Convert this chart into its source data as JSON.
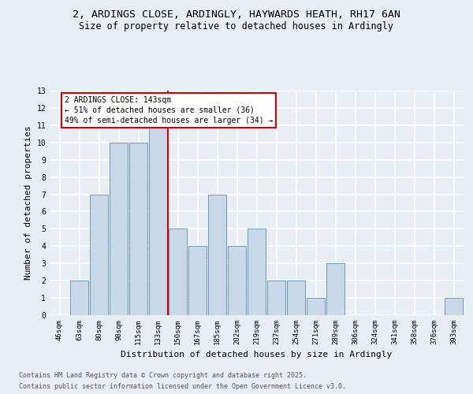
{
  "title_line1": "2, ARDINGS CLOSE, ARDINGLY, HAYWARDS HEATH, RH17 6AN",
  "title_line2": "Size of property relative to detached houses in Ardingly",
  "xlabel": "Distribution of detached houses by size in Ardingly",
  "ylabel": "Number of detached properties",
  "categories": [
    "46sqm",
    "63sqm",
    "80sqm",
    "98sqm",
    "115sqm",
    "133sqm",
    "150sqm",
    "167sqm",
    "185sqm",
    "202sqm",
    "219sqm",
    "237sqm",
    "254sqm",
    "271sqm",
    "289sqm",
    "306sqm",
    "324sqm",
    "341sqm",
    "358sqm",
    "376sqm",
    "393sqm"
  ],
  "values": [
    0,
    2,
    7,
    10,
    10,
    11,
    5,
    4,
    7,
    4,
    5,
    2,
    2,
    1,
    3,
    0,
    0,
    0,
    0,
    0,
    1
  ],
  "bar_color": "#c8d8e8",
  "bar_edge_color": "#5b8db0",
  "ref_line_x": 5.5,
  "ref_line_color": "#cc0000",
  "annotation_text": "2 ARDINGS CLOSE: 143sqm\n← 51% of detached houses are smaller (36)\n49% of semi-detached houses are larger (34) →",
  "annotation_box_color": "#ffffff",
  "annotation_box_edge": "#cc0000",
  "ylim": [
    0,
    13
  ],
  "yticks": [
    0,
    1,
    2,
    3,
    4,
    5,
    6,
    7,
    8,
    9,
    10,
    11,
    12,
    13
  ],
  "footer_line1": "Contains HM Land Registry data © Crown copyright and database right 2025.",
  "footer_line2": "Contains public sector information licensed under the Open Government Licence v3.0.",
  "background_color": "#e8eef4",
  "grid_color": "#ffffff",
  "title_fontsize": 9.5,
  "subtitle_fontsize": 8.5,
  "axis_label_fontsize": 8,
  "tick_fontsize": 6.5,
  "annotation_fontsize": 7,
  "footer_fontsize": 6
}
